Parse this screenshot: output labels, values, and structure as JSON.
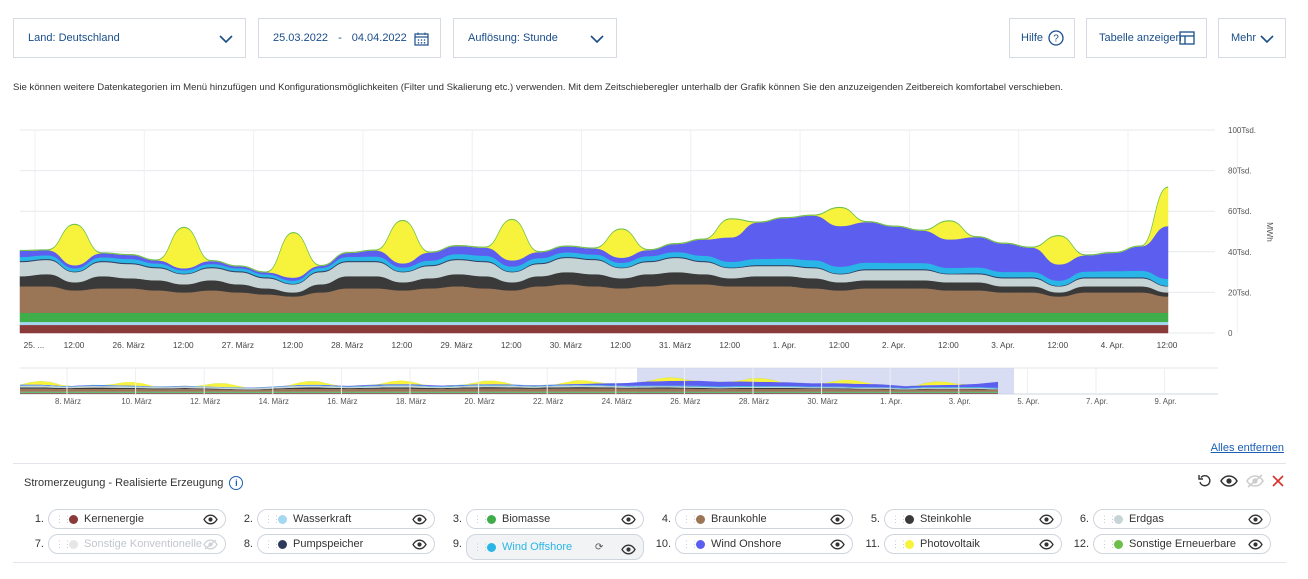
{
  "controls": {
    "land_label": "Land: Deutschland",
    "date_from": "25.03.2022",
    "date_sep": "-",
    "date_to": "04.04.2022",
    "resolution_label": "Auflösung: Stunde",
    "help_label": "Hilfe",
    "table_label": "Tabelle anzeigen",
    "more_label": "Mehr"
  },
  "hint": "Sie können weitere Datenkategorien im Menü hinzufügen und Konfigurationsmöglichkeiten (Filter und Skalierung etc.) verwenden. Mit dem Zeitschieberegler unterhalb der Grafik können Sie den anzuzeigenden Zeitbereich komfortabel verschieben.",
  "remove_all": "Alles entfernen",
  "section_title": "Stromerzeugung - Realisierte Erzeugung",
  "colors": {
    "accent": "#1a5fb4",
    "Kernenergie": "#8b3a3a",
    "Wasserkraft": "#a3d8f0",
    "Biomasse": "#3fae4a",
    "Braunkohle": "#9a7556",
    "Steinkohle": "#3a3a3a",
    "Erdgas": "#c7d4d6",
    "Sonstige Konventionelle": "#e6e6e6",
    "Pumpspeicher": "#2e3a5c",
    "Wind Offshore": "#29b6e6",
    "Wind Onshore": "#5c5ef0",
    "Photovoltaik": "#f7f23b",
    "Sonstige Erneuerbare": "#6cc04a"
  },
  "legend": [
    {
      "num": "1.",
      "name": "Kernenergie",
      "color": "#8b3a3a",
      "state": "visible"
    },
    {
      "num": "2.",
      "name": "Wasserkraft",
      "color": "#a3d8f0",
      "state": "visible"
    },
    {
      "num": "3.",
      "name": "Biomasse",
      "color": "#3fae4a",
      "state": "visible"
    },
    {
      "num": "4.",
      "name": "Braunkohle",
      "color": "#9a7556",
      "state": "visible"
    },
    {
      "num": "5.",
      "name": "Steinkohle",
      "color": "#3a3a3a",
      "state": "visible"
    },
    {
      "num": "6.",
      "name": "Erdgas",
      "color": "#c7d4d6",
      "state": "visible"
    },
    {
      "num": "7.",
      "name": "Sonstige Konventionelle",
      "color": "#e6e6e6",
      "state": "hidden"
    },
    {
      "num": "8.",
      "name": "Pumpspeicher",
      "color": "#2e3a5c",
      "state": "visible"
    },
    {
      "num": "9.",
      "name": "Wind Offshore",
      "color": "#29b6e6",
      "state": "hover"
    },
    {
      "num": "10.",
      "name": "Wind Onshore",
      "color": "#5c5ef0",
      "state": "visible"
    },
    {
      "num": "11.",
      "name": "Photovoltaik",
      "color": "#f7f23b",
      "state": "visible"
    },
    {
      "num": "12.",
      "name": "Sonstige Erneuerbare",
      "color": "#6cc04a",
      "state": "visible"
    }
  ],
  "chart_data": {
    "type": "area",
    "stacked": true,
    "unit": "MWh",
    "y_axis_title": "MWh",
    "ylim": [
      0,
      100000
    ],
    "yticks": [
      0,
      20000,
      40000,
      60000,
      80000,
      100000
    ],
    "ytick_labels": [
      "0",
      "20Tsd.",
      "40Tsd.",
      "60Tsd.",
      "80Tsd.",
      "100Tsd."
    ],
    "xlim": [
      "2022-03-25 00:00",
      "2022-04-04 12:00"
    ],
    "xtick_labels": [
      "25. ...",
      "12:00",
      "26. März",
      "12:00",
      "27. März",
      "12:00",
      "28. März",
      "12:00",
      "29. März",
      "12:00",
      "30. März",
      "12:00",
      "31. März",
      "12:00",
      "1. Apr.",
      "12:00",
      "2. Apr.",
      "12:00",
      "3. Apr.",
      "12:00",
      "4. Apr.",
      "12:00"
    ],
    "grid": true,
    "x": [
      "2022-03-25 00:00",
      "2022-03-25 06:00",
      "2022-03-25 12:00",
      "2022-03-25 18:00",
      "2022-03-26 00:00",
      "2022-03-26 06:00",
      "2022-03-26 12:00",
      "2022-03-26 18:00",
      "2022-03-27 00:00",
      "2022-03-27 06:00",
      "2022-03-27 12:00",
      "2022-03-27 18:00",
      "2022-03-28 00:00",
      "2022-03-28 06:00",
      "2022-03-28 12:00",
      "2022-03-28 18:00",
      "2022-03-29 00:00",
      "2022-03-29 06:00",
      "2022-03-29 12:00",
      "2022-03-29 18:00",
      "2022-03-30 00:00",
      "2022-03-30 06:00",
      "2022-03-30 12:00",
      "2022-03-30 18:00",
      "2022-03-31 00:00",
      "2022-03-31 06:00",
      "2022-03-31 12:00",
      "2022-03-31 18:00",
      "2022-04-01 00:00",
      "2022-04-01 06:00",
      "2022-04-01 12:00",
      "2022-04-01 18:00",
      "2022-04-02 00:00",
      "2022-04-02 06:00",
      "2022-04-02 12:00",
      "2022-04-02 18:00",
      "2022-04-03 00:00",
      "2022-04-03 06:00",
      "2022-04-03 12:00",
      "2022-04-03 18:00",
      "2022-04-04 00:00",
      "2022-04-04 06:00",
      "2022-04-04 12:00"
    ],
    "series": [
      {
        "name": "Kernenergie",
        "values": [
          4000,
          4000,
          4000,
          4000,
          4000,
          4000,
          4000,
          4000,
          4000,
          4000,
          4000,
          4000,
          4000,
          4000,
          4000,
          4000,
          4000,
          4000,
          4000,
          4000,
          4000,
          4000,
          4000,
          4000,
          4000,
          4000,
          4000,
          4000,
          4000,
          4000,
          4000,
          4000,
          4000,
          4000,
          4000,
          4000,
          4000,
          4000,
          4000,
          4000,
          4000,
          4000,
          4000
        ]
      },
      {
        "name": "Wasserkraft",
        "values": [
          1500,
          1500,
          1500,
          1500,
          1500,
          1500,
          1500,
          1500,
          1500,
          1500,
          1500,
          1500,
          1500,
          1500,
          1500,
          1500,
          1500,
          1500,
          1500,
          1500,
          1500,
          1500,
          1500,
          1500,
          1500,
          1500,
          1500,
          1500,
          1500,
          1500,
          1500,
          1500,
          1500,
          1500,
          1500,
          1500,
          1500,
          1500,
          1500,
          1500,
          1500,
          1500,
          1500
        ]
      },
      {
        "name": "Biomasse",
        "values": [
          4500,
          4500,
          4500,
          4500,
          4500,
          4500,
          4500,
          4500,
          4500,
          4500,
          4500,
          4500,
          4500,
          4500,
          4500,
          4500,
          4500,
          4500,
          4500,
          4500,
          4500,
          4500,
          4500,
          4500,
          4500,
          4500,
          4500,
          4500,
          4500,
          4500,
          4500,
          4500,
          4500,
          4500,
          4500,
          4500,
          4500,
          4500,
          4500,
          4500,
          4500,
          4500,
          4500
        ]
      },
      {
        "name": "Braunkohle",
        "values": [
          13000,
          13000,
          11000,
          12000,
          12000,
          11000,
          10000,
          11000,
          10000,
          9000,
          8000,
          10000,
          12000,
          12000,
          11000,
          12000,
          13000,
          12000,
          11000,
          13000,
          14000,
          13000,
          12000,
          13000,
          14000,
          14000,
          13000,
          13000,
          13000,
          12000,
          11000,
          12000,
          12000,
          12000,
          11000,
          11000,
          10000,
          10000,
          8000,
          10000,
          10000,
          10000,
          8000
        ]
      },
      {
        "name": "Steinkohle",
        "values": [
          5000,
          6000,
          4000,
          6000,
          5000,
          5000,
          4000,
          5000,
          4000,
          3000,
          2000,
          4000,
          6000,
          6000,
          4000,
          5000,
          6000,
          6000,
          4000,
          5000,
          6000,
          6000,
          5000,
          6000,
          6000,
          5000,
          4000,
          5000,
          5000,
          5000,
          4000,
          4000,
          4000,
          4000,
          4000,
          4000,
          3000,
          3000,
          2000,
          3000,
          3000,
          3000,
          2000
        ]
      },
      {
        "name": "Erdgas",
        "values": [
          7000,
          7000,
          5000,
          7000,
          7000,
          6000,
          5000,
          6000,
          6000,
          5000,
          4000,
          6000,
          7000,
          7000,
          5000,
          6000,
          7000,
          7000,
          5000,
          6000,
          7000,
          7000,
          5000,
          6000,
          7000,
          6000,
          5000,
          5000,
          5000,
          5000,
          4000,
          5000,
          5000,
          5000,
          4000,
          4000,
          4000,
          4000,
          3000,
          4000,
          4000,
          4000,
          3000
        ]
      },
      {
        "name": "Pumpspeicher",
        "values": [
          500,
          500,
          300,
          500,
          500,
          500,
          300,
          500,
          500,
          500,
          300,
          500,
          500,
          500,
          300,
          500,
          500,
          500,
          300,
          500,
          500,
          500,
          300,
          500,
          500,
          500,
          300,
          500,
          500,
          500,
          300,
          500,
          500,
          500,
          300,
          500,
          500,
          500,
          300,
          500,
          500,
          500,
          300
        ]
      },
      {
        "name": "Wind Offshore",
        "values": [
          2000,
          1800,
          1600,
          1800,
          2000,
          1800,
          1600,
          1500,
          1400,
          1400,
          1500,
          1600,
          2000,
          2200,
          2000,
          2200,
          2400,
          2600,
          2500,
          2400,
          2200,
          2200,
          2300,
          2400,
          2400,
          2600,
          2800,
          3000,
          3200,
          3400,
          3400,
          3200,
          3000,
          3000,
          2800,
          2800,
          2600,
          2600,
          2500,
          2800,
          3000,
          3200,
          3400
        ]
      },
      {
        "name": "Wind Onshore",
        "values": [
          3000,
          2500,
          1500,
          2000,
          2000,
          1500,
          1000,
          1500,
          1000,
          1000,
          1500,
          1000,
          2000,
          3000,
          2000,
          4000,
          4000,
          4000,
          3000,
          3000,
          3000,
          3000,
          2500,
          3000,
          4000,
          8000,
          12000,
          18000,
          20000,
          22000,
          20000,
          20000,
          18000,
          16000,
          14000,
          15000,
          14000,
          12000,
          8000,
          8000,
          9000,
          12000,
          26000
        ]
      },
      {
        "name": "Photovoltaik",
        "values": [
          0,
          0,
          20000,
          0,
          0,
          0,
          20000,
          0,
          0,
          0,
          22000,
          0,
          0,
          0,
          21000,
          0,
          0,
          0,
          20000,
          0,
          0,
          0,
          14000,
          0,
          0,
          0,
          9000,
          0,
          0,
          0,
          9000,
          0,
          0,
          0,
          9000,
          0,
          0,
          0,
          14000,
          0,
          0,
          0,
          19000
        ]
      },
      {
        "name": "Sonstige Erneuerbare",
        "values": [
          300,
          300,
          300,
          300,
          300,
          300,
          300,
          300,
          300,
          300,
          300,
          300,
          300,
          300,
          300,
          300,
          300,
          300,
          300,
          300,
          300,
          300,
          300,
          300,
          300,
          300,
          300,
          300,
          300,
          300,
          300,
          300,
          300,
          300,
          300,
          300,
          300,
          300,
          300,
          300,
          300,
          300,
          300
        ]
      }
    ]
  },
  "navigator": {
    "tick_labels": [
      "8. März",
      "10. März",
      "12. März",
      "14. März",
      "16. März",
      "18. März",
      "20. März",
      "22. März",
      "24. März",
      "26. März",
      "28. März",
      "30. März",
      "1. Apr.",
      "3. Apr.",
      "5. Apr.",
      "7. Apr.",
      "9. Apr."
    ],
    "selected_range": [
      "25.03.2022",
      "04.04.2022"
    ]
  }
}
